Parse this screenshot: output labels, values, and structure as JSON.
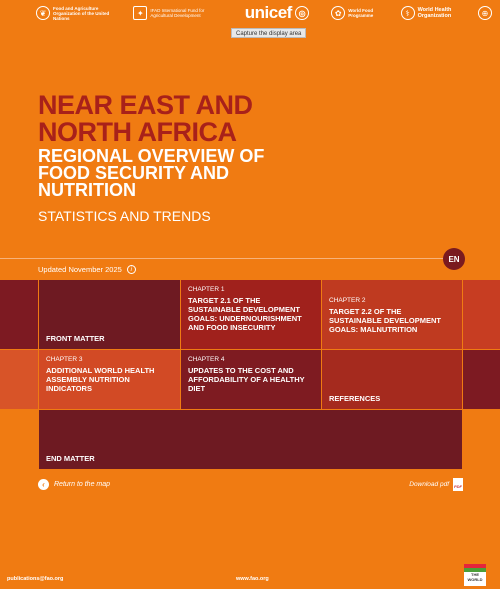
{
  "header": {
    "logos": [
      {
        "name": "fao-logo",
        "icon": "wheat-emblem-icon",
        "text": "Food and Agriculture Organization of the United Nations"
      },
      {
        "name": "ifad-logo",
        "icon": "ifad-icon",
        "text": "IFAD International Fund for Agricultural Development"
      },
      {
        "name": "unicef-logo",
        "icon": "globe-icon",
        "text": "unicef"
      },
      {
        "name": "wfp-logo",
        "icon": "wfp-icon",
        "text": "World Food Programme"
      },
      {
        "name": "who-logo",
        "icon": "who-emblem-icon",
        "text": "World Health Organization"
      },
      {
        "name": "wmo-logo",
        "icon": "wmo-emblem-icon",
        "text": ""
      }
    ],
    "capture_label": "Capture the display area"
  },
  "hero": {
    "title": "NEAR EAST AND NORTH AFRICA",
    "subtitle": "REGIONAL OVERVIEW OF FOOD SECURITY AND NUTRITION",
    "tagline": "STATISTICS AND TRENDS"
  },
  "language_badge": "EN",
  "updated": "Updated November 2025",
  "tiles": [
    {
      "chapter": "",
      "label": "FRONT MATTER",
      "color": "#6e1a22"
    },
    {
      "chapter": "CHAPTER 1",
      "label": "TARGET 2.1 OF THE SUSTAINABLE DEVELOPMENT GOALS: UNDERNOURISHMENT AND FOOD INSECURITY",
      "color": "#a0211c"
    },
    {
      "chapter": "CHAPTER 2",
      "label": "TARGET 2.2 OF THE SUSTAINABLE DEVELOPMENT GOALS: MALNUTRITION",
      "color": "#bf3a20"
    },
    {
      "chapter": "CHAPTER 3",
      "label": "ADDITIONAL WORLD HEALTH ASSEMBLY NUTRITION INDICATORS",
      "color": "#d24a25"
    },
    {
      "chapter": "CHAPTER 4",
      "label": "UPDATES TO THE COST AND AFFORDABILITY OF A HEALTHY DIET",
      "color": "#7e1b21"
    },
    {
      "chapter": "",
      "label": "REFERENCES",
      "color": "#a52a1e"
    },
    {
      "chapter": "",
      "label": "END MATTER",
      "color": "#6e1a22"
    }
  ],
  "edge_colors": {
    "left": "#7d1a22",
    "right": "#c73d22",
    "accent": "#d85428"
  },
  "actions": {
    "back_label": "Return to the map",
    "download_label": "Download pdf",
    "pdf_icon_text": "PDF"
  },
  "footer": {
    "email": "publications@fao.org",
    "website": "www.fao.org",
    "badge_text": "THE WORLD"
  }
}
